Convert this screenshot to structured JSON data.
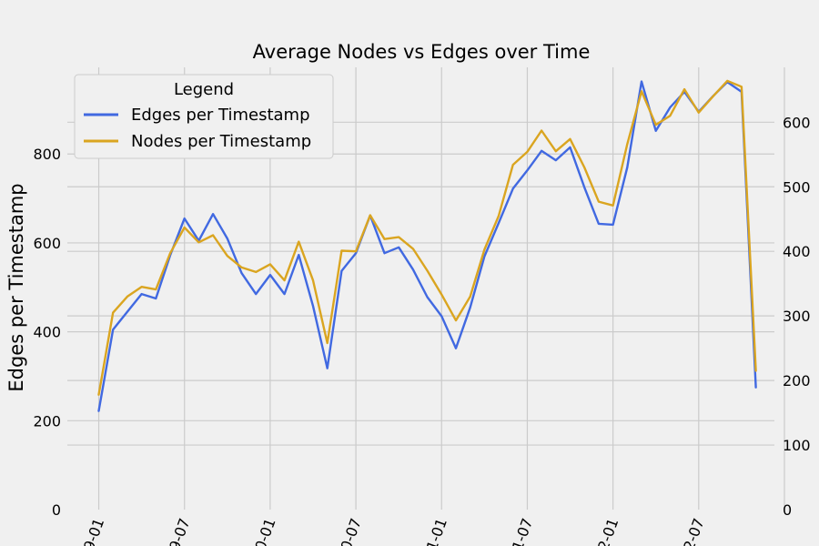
{
  "chart_data": {
    "type": "line",
    "title": "Average Nodes vs Edges over Time",
    "ylabel_left": "Edges per Timestamp",
    "ylabel_right": "",
    "legend": {
      "title": "Legend",
      "placement": "top-left"
    },
    "x_tick_labels": [
      "9-01",
      "9-07",
      "0-01",
      "0-07",
      "1-01",
      "1-07",
      "2-01",
      "2-07"
    ],
    "y_left_ticks": [
      0,
      200,
      400,
      600,
      800
    ],
    "y_right_ticks": [
      0,
      100,
      200,
      300,
      400,
      500,
      600
    ],
    "ylim_left": [
      0,
      995
    ],
    "ylim_right": [
      0,
      685
    ],
    "xlim_months": [
      -2.2,
      47.3
    ],
    "grid": true,
    "x_months": [
      0,
      1,
      2,
      3,
      4,
      5,
      6,
      7,
      8,
      9,
      10,
      11,
      12,
      13,
      14,
      15,
      16,
      17,
      18,
      19,
      20,
      21,
      22,
      23,
      24,
      25,
      26,
      27,
      28,
      29,
      30,
      31,
      32,
      33,
      34,
      35,
      36,
      37,
      38,
      39,
      40,
      41,
      42,
      43,
      44,
      45,
      46
    ],
    "series": [
      {
        "name": "Edges per Timestamp",
        "axis": "left",
        "color": "#4169e1",
        "values": [
          222,
          405,
          445,
          485,
          475,
          572,
          655,
          605,
          665,
          610,
          532,
          485,
          528,
          485,
          573,
          458,
          318,
          537,
          577,
          662,
          577,
          590,
          540,
          478,
          435,
          363,
          455,
          570,
          645,
          722,
          763,
          807,
          786,
          815,
          725,
          643,
          641,
          770,
          963,
          852,
          905,
          940,
          895,
          930,
          962,
          940,
          275
        ]
      },
      {
        "name": "Nodes per Timestamp",
        "axis": "right",
        "color": "#daa520",
        "values": [
          178,
          305,
          330,
          345,
          341,
          397,
          437,
          414,
          425,
          393,
          375,
          368,
          380,
          355,
          415,
          355,
          258,
          401,
          400,
          456,
          419,
          422,
          404,
          370,
          333,
          293,
          330,
          403,
          455,
          534,
          554,
          587,
          555,
          574,
          530,
          477,
          471,
          566,
          648,
          596,
          610,
          651,
          615,
          640,
          664,
          655,
          215
        ]
      }
    ]
  }
}
